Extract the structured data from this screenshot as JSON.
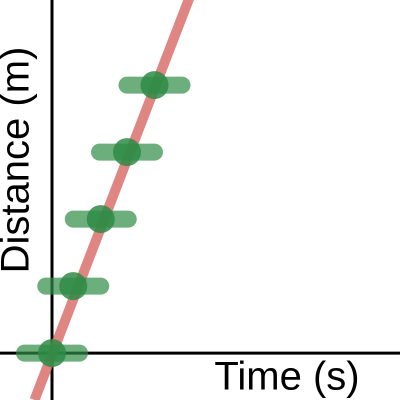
{
  "chart_data": {
    "type": "scatter",
    "xlabel": "Time (s)",
    "ylabel": "Distance (m)",
    "xlim": [
      -2.08,
      13.92
    ],
    "ylim": [
      -0.7,
      5.27
    ],
    "series": [
      {
        "type": "scatter",
        "color": "#2e8b45",
        "x": [
          0,
          0.85,
          1.95,
          3,
          4.1
        ],
        "values": [
          0,
          1,
          2,
          3,
          4
        ],
        "xerr": [
          1.1,
          1.1,
          1.1,
          1.1,
          1.1
        ]
      },
      {
        "type": "line",
        "color": "#d9706c",
        "x": [
          -0.7,
          5.7
        ],
        "values": [
          -0.7,
          5.5
        ]
      }
    ]
  }
}
